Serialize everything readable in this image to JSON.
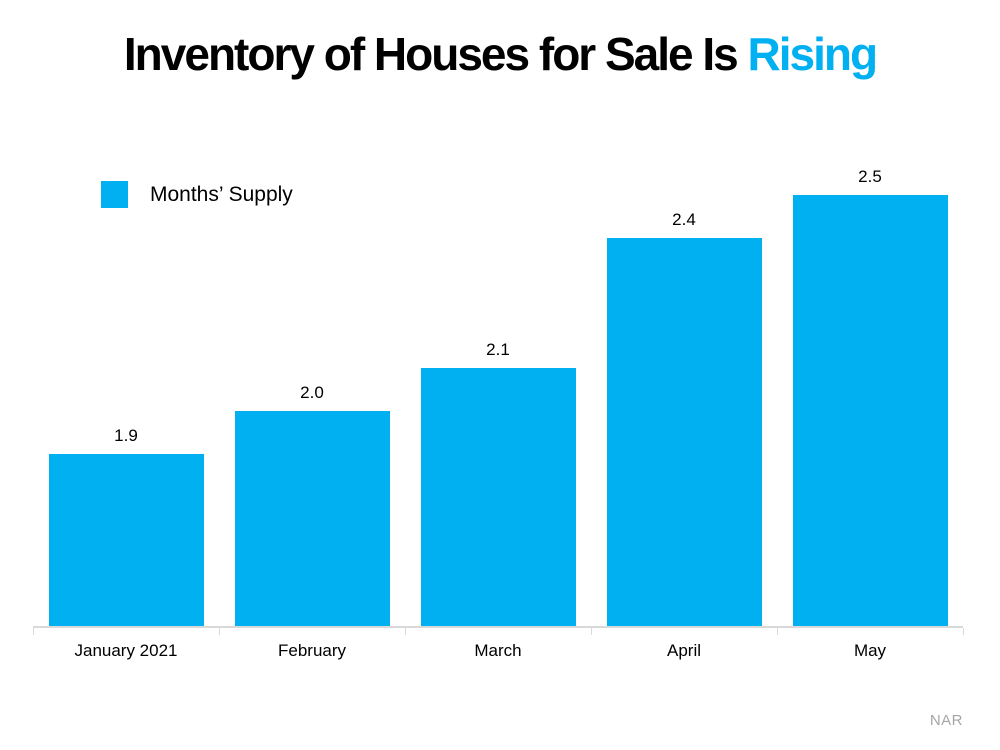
{
  "title": {
    "black_part": "Inventory of Houses for Sale Is",
    "accent_part": "Rising"
  },
  "legend": {
    "label": "Months’ Supply"
  },
  "source": "NAR",
  "colors": {
    "accent_blue": "#00B0F0",
    "axis_gray": "#D9D9D9",
    "source_gray": "#A6A6A6",
    "title_black": "#000000"
  },
  "chart_data": {
    "type": "bar",
    "title": "Inventory of Houses for Sale Is Rising",
    "categories": [
      "January 2021",
      "February",
      "March",
      "April",
      "May"
    ],
    "values": [
      1.9,
      2.0,
      2.1,
      2.4,
      2.5
    ],
    "value_labels": [
      "1.9",
      "2.0",
      "2.1",
      "2.4",
      "2.5"
    ],
    "series_name": "Months’ Supply",
    "legend_entries": [
      "Months’ Supply"
    ],
    "legend_position": "top-left",
    "xlabel": "",
    "ylabel": "",
    "ylim": [
      1.5,
      2.6
    ],
    "grid": false,
    "bar_color": "#00B0F0",
    "value_labels_shown": true,
    "y_axis_shown": false,
    "source": "NAR"
  }
}
